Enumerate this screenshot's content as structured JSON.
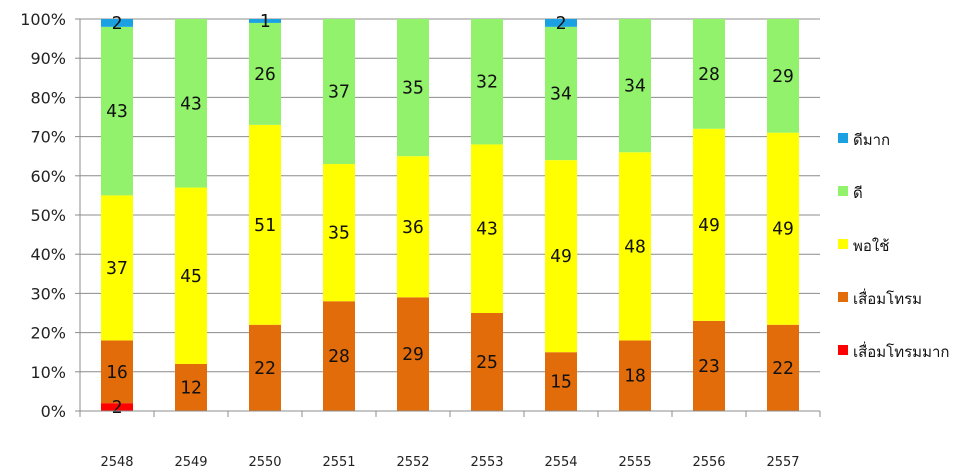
{
  "chart_data": {
    "type": "bar",
    "stacked": true,
    "percent_stacked": true,
    "categories": [
      "2548",
      "2549",
      "2550",
      "2551",
      "2552",
      "2553",
      "2554",
      "2555",
      "2556",
      "2557"
    ],
    "series": [
      {
        "name": "เสื่อมโทรมมาก",
        "color": "#ff0000",
        "values": [
          2,
          0,
          0,
          0,
          0,
          0,
          0,
          0,
          0,
          0
        ]
      },
      {
        "name": "เสื่อมโทรม",
        "color": "#e36c0a",
        "values": [
          16,
          12,
          22,
          28,
          29,
          25,
          15,
          18,
          23,
          22
        ]
      },
      {
        "name": "พอใช้",
        "color": "#ffff00",
        "values": [
          37,
          45,
          51,
          35,
          36,
          43,
          49,
          48,
          49,
          49
        ]
      },
      {
        "name": "ดี",
        "color": "#92f26b",
        "values": [
          43,
          43,
          26,
          37,
          35,
          32,
          34,
          34,
          28,
          29
        ]
      },
      {
        "name": "ดีมาก",
        "color": "#1ba1e2",
        "values": [
          2,
          0,
          1,
          0,
          0,
          0,
          2,
          0,
          0,
          0
        ]
      }
    ],
    "ylim": [
      0,
      100
    ],
    "y_ticks": [
      "0%",
      "10%",
      "20%",
      "30%",
      "40%",
      "50%",
      "60%",
      "70%",
      "80%",
      "90%",
      "100%"
    ],
    "grid": true,
    "legend_position": "right",
    "legend_order": [
      "ดีมาก",
      "ดี",
      "พอใช้",
      "เสื่อมโทรม",
      "เสื่อมโทรมมาก"
    ]
  }
}
